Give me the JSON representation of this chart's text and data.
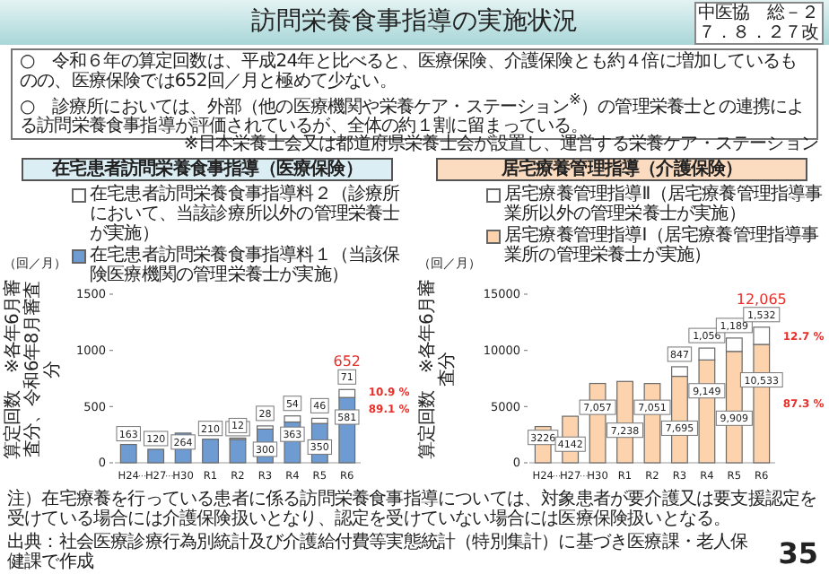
{
  "chart_data": [
    {
      "type": "other",
      "title": "訪問栄養食事指導の実施状況",
      "annotations": [
        "中医協　総－２７．８．２７改",
        "○　令和６年の算定回数は、平成24年と比べると、医療保険、介護保険とも約４倍に増加しているものの、医療保険では652回／月と極めて少ない。",
        "○　診療所においては、外部（他の医療機関や栄養ケア・ステーション$^{※}$）の管理栄養士との連携による訪問栄養食事指導が評価されているが、全体の約１割に留まっている。",
        "※日本栄養士会又は都道府県栄養士会が設置し、運営する栄養ケア・ステーション",
        "注）在宅療養を行っている患者に係る訪問栄養食事指導については、対象患者が要介護又は要支援認定を受けている場合には介護保険扱いとなり、認定を受けていない場合には医療保険扱いとなる。",
        "出典：社会医療診療行為別統計及び介護給付費等実態統計（特別集計）に基づき医療課・老人保健課で作成",
        "35"
      ]
    },
    {
      "type": "bar",
      "stacked": true,
      "title": "在宅患者訪問栄養食事指導（医療保険）",
      "ylabel": "算定回数　※各年6月審査分、令和6年8月審査分",
      "categories": [
        "H24",
        "H27",
        "H30",
        "R1",
        "R2",
        "R3",
        "R4",
        "R5",
        "R6"
      ],
      "ylim": [
        0,
        1500
      ],
      "yticks": [
        0,
        500,
        1000,
        1500
      ],
      "legend": "top left",
      "data_labels": true,
      "totals": [
        null,
        null,
        null,
        null,
        null,
        null,
        null,
        null,
        "652"
      ],
      "series": [
        {
          "name": "在宅患者訪問栄養食事指導料１（当該保険医療機関の管理栄養士が実施）",
          "color": "#6f9bd3",
          "values": [
            163,
            120,
            264,
            210,
            208,
            300,
            363,
            350,
            581
          ]
        },
        {
          "name": "在宅患者訪問栄養食事指導料２（診療所において、当該診療所以外の管理栄養士が実施）",
          "color": "#ffffff",
          "values": [
            null,
            null,
            null,
            null,
            12,
            28,
            54,
            46,
            71
          ]
        }
      ],
      "annotations": [
        "（回／月）",
        "···",
        "···",
        {
          "text": "10.9 %",
          "x": "R6",
          "y": 630
        },
        {
          "text": "89.1 %",
          "x": "R6",
          "y": 480
        }
      ]
    },
    {
      "type": "bar",
      "stacked": true,
      "title": "居宅療養管理指導（介護保険）",
      "ylabel": "算定回数　※各年6月審査分",
      "categories": [
        "H24",
        "H27",
        "H30",
        "R1",
        "R2",
        "R3",
        "R4",
        "R5",
        "R6"
      ],
      "ylim": [
        0,
        15000
      ],
      "yticks": [
        0,
        5000,
        10000,
        15000
      ],
      "legend": "top left",
      "totals": [
        null,
        null,
        null,
        null,
        null,
        null,
        null,
        null,
        "12,065"
      ],
      "series": [
        {
          "name": "居宅療養管理指導Ⅰ（居宅療養管理指導事業所の管理栄養士が実施）",
          "color": "#fcd3ad",
          "values": [
            3226,
            4142,
            7057,
            7238,
            7051,
            7695,
            9149,
            9909,
            10533
          ],
          "value_labels": [
            "3226",
            "4142",
            "7,057",
            "7,238",
            "7,051",
            "7,695",
            "9,149",
            "9,909",
            "10,533"
          ]
        },
        {
          "name": "居宅療養管理指導Ⅱ（居宅療養管理指導事業所以外の管理栄養士が実施）",
          "color": "#ffffff",
          "values": [
            null,
            null,
            null,
            null,
            null,
            847,
            1056,
            1189,
            1532
          ],
          "value_labels": [
            null,
            null,
            null,
            null,
            null,
            "847",
            "1,056",
            "1,189",
            "1,532"
          ]
        }
      ],
      "annotations": [
        "（回／月）",
        "···",
        "···",
        {
          "text": "12.7 %",
          "x": "R6",
          "y": 11300
        },
        {
          "text": "87.3 %",
          "x": "R6",
          "y": 5266
        }
      ]
    }
  ]
}
